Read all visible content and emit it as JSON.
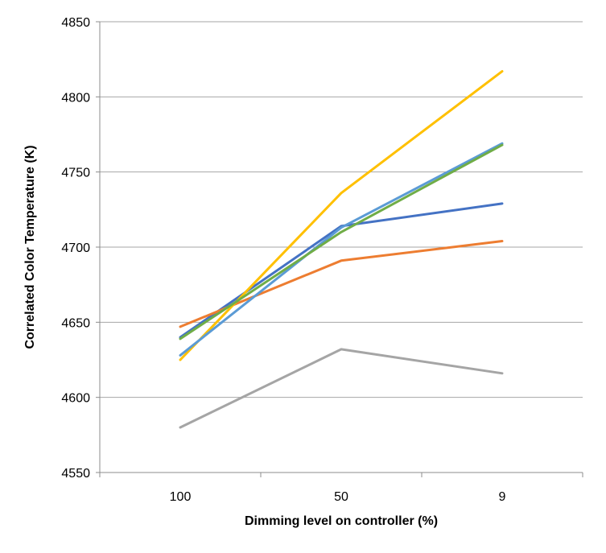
{
  "chart_data": {
    "type": "line",
    "title": "",
    "xlabel": "Dimming level on controller (%)",
    "ylabel": "Correlated Color Temperature (K)",
    "categories": [
      "100",
      "50",
      "9"
    ],
    "ylim": [
      4550,
      4850
    ],
    "yticks": [
      4550,
      4600,
      4650,
      4700,
      4750,
      4800,
      4850
    ],
    "grid": true,
    "legend": "none",
    "series": [
      {
        "color": "#4472C4",
        "values": [
          4640,
          4714,
          4729
        ]
      },
      {
        "color": "#ED7D31",
        "values": [
          4647,
          4691,
          4704
        ]
      },
      {
        "color": "#A5A5A5",
        "values": [
          4580,
          4632,
          4616
        ]
      },
      {
        "color": "#FFC000",
        "values": [
          4625,
          4736,
          4817
        ]
      },
      {
        "color": "#5B9BD5",
        "values": [
          4628,
          4713,
          4769
        ]
      },
      {
        "color": "#70AD47",
        "values": [
          4639,
          4710,
          4768
        ]
      }
    ]
  }
}
